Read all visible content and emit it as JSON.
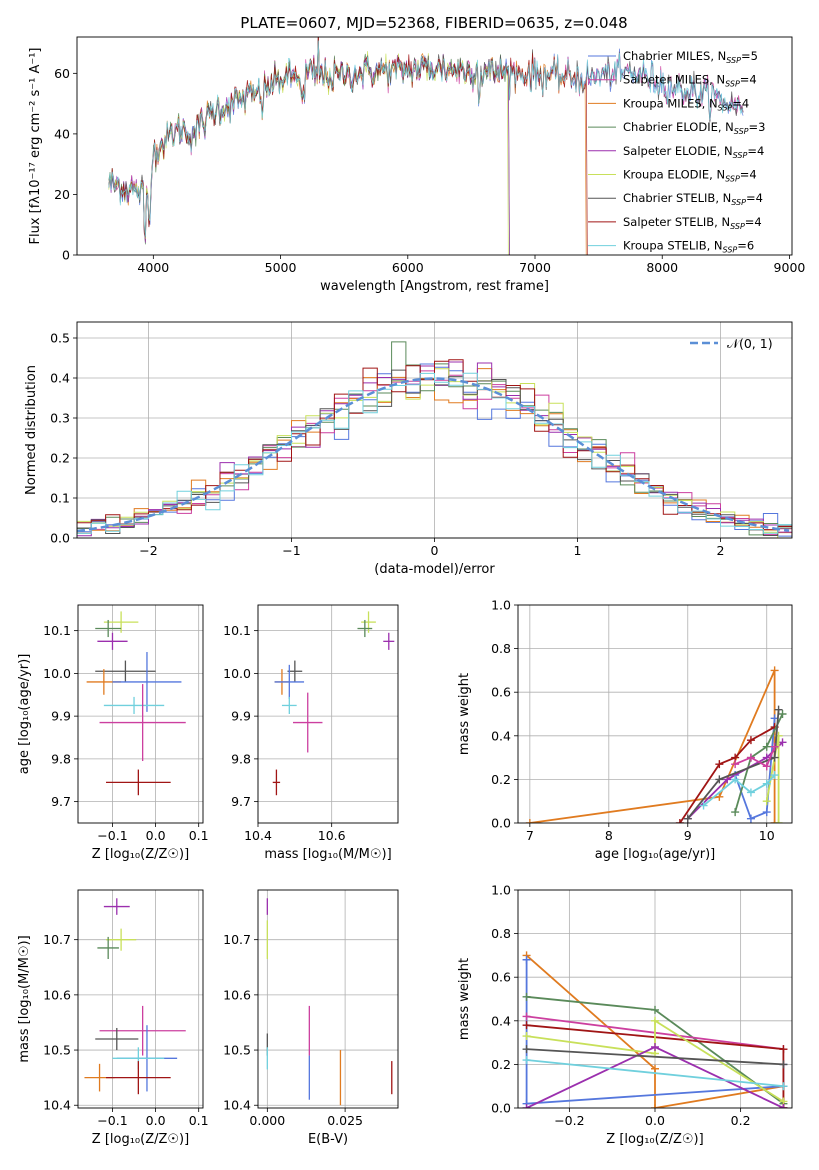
{
  "title": "PLATE=0607, MJD=52368, FIBERID=0635, z=0.048",
  "colors": {
    "Chabrier MILES": "#5577dd",
    "Salpeter MILES": "#cc3f9f",
    "Kroupa MILES": "#e07b20",
    "Chabrier ELODIE": "#5a8a5a",
    "Salpeter ELODIE": "#9b2fae",
    "Kroupa ELODIE": "#c8e05a",
    "Chabrier STELIB": "#555555",
    "Salpeter STELIB": "#a01515",
    "Kroupa STELIB": "#70d0dd"
  },
  "chart_data": [
    {
      "id": "spectrum",
      "type": "line",
      "xlabel": "wavelength [Angstrom, rest frame]",
      "ylabel": "Flux [fλ10⁻¹⁷ erg cm⁻² s⁻¹ A⁻¹]",
      "xlim": [
        3400,
        9020
      ],
      "ylim": [
        0,
        72
      ],
      "xticks": [
        4000,
        5000,
        6000,
        7000,
        8000,
        9000
      ],
      "yticks": [
        0,
        20,
        40,
        60
      ],
      "legend_position": "top-right",
      "legend": [
        {
          "model": "Chabrier MILES",
          "prefix": "Chabrier MILES, N",
          "nssp": "5"
        },
        {
          "model": "Salpeter MILES",
          "prefix": "Salpeter MILES, N",
          "nssp": "4"
        },
        {
          "model": "Kroupa MILES",
          "prefix": "Kroupa MILES, N",
          "nssp": "4"
        },
        {
          "model": "Chabrier ELODIE",
          "prefix": "Chabrier ELODIE, N",
          "nssp": "3"
        },
        {
          "model": "Salpeter ELODIE",
          "prefix": "Salpeter ELODIE, N",
          "nssp": "4"
        },
        {
          "model": "Kroupa ELODIE",
          "prefix": "Kroupa ELODIE, N",
          "nssp": "4"
        },
        {
          "model": "Chabrier STELIB",
          "prefix": "Chabrier STELIB, N",
          "nssp": "4"
        },
        {
          "model": "Salpeter STELIB",
          "prefix": "Salpeter STELIB, N",
          "nssp": "4"
        },
        {
          "model": "Kroupa STELIB",
          "prefix": "Kroupa STELIB, N",
          "nssp": "6"
        }
      ],
      "nssp_subscript": "SSP",
      "continuum": {
        "x": [
          3650,
          3800,
          3950,
          4000,
          4100,
          4200,
          4300,
          4500,
          4800,
          5000,
          5200,
          5400,
          5600,
          5800,
          6000,
          6200,
          6400,
          6600,
          6800,
          7000,
          7200,
          7400,
          7600,
          7800,
          8000,
          8200,
          8400,
          8600
        ],
        "y": [
          24,
          22,
          20,
          34,
          38,
          42,
          40,
          48,
          53,
          58,
          60,
          59,
          60,
          61,
          61,
          62,
          61,
          61,
          60,
          60,
          59,
          58,
          60,
          60,
          57,
          54,
          52,
          49
        ]
      },
      "model_cutoffs": [
        {
          "model": "Kroupa ELODIE",
          "x": 6790
        },
        {
          "model": "Chabrier ELODIE",
          "x": 6800
        },
        {
          "model": "Salpeter ELODIE",
          "x": 6800
        },
        {
          "model": "Kroupa MILES",
          "x": 7400
        },
        {
          "model": "Salpeter STELIB",
          "x": 7410
        }
      ]
    },
    {
      "id": "residuals",
      "type": "line",
      "xlabel": "(data-model)/error",
      "ylabel": "Normed distribution",
      "xlim": [
        -2.5,
        2.5
      ],
      "ylim": [
        0,
        0.54
      ],
      "xticks": [
        -2,
        -1,
        0,
        1,
        2
      ],
      "yticks": [
        0.0,
        0.1,
        0.2,
        0.3,
        0.4,
        0.5
      ],
      "grid": true,
      "legend_position": "top-right",
      "legend_label": "𝒩(0, 1)",
      "gaussian": {
        "mean": 0,
        "sigma": 1,
        "color": "#5b8fd6"
      }
    },
    {
      "id": "age-vs-Z",
      "type": "scatter",
      "xlabel": "Z [log₁₀(Z/Z☉)]",
      "ylabel": "age  [log₁₀(age/yr)]",
      "xlim": [
        -0.18,
        0.11
      ],
      "ylim": [
        9.65,
        10.16
      ],
      "xticks": [
        -0.1,
        0.0,
        0.1
      ],
      "yticks": [
        9.7,
        9.8,
        9.9,
        10.0,
        10.1
      ],
      "grid": true,
      "points": [
        {
          "model": "Kroupa ELODIE",
          "x": -0.08,
          "y": 10.12,
          "xerr": 0.04,
          "yerr": 0.025
        },
        {
          "model": "Chabrier ELODIE",
          "x": -0.11,
          "y": 10.105,
          "xerr": 0.03,
          "yerr": 0.02
        },
        {
          "model": "Salpeter ELODIE",
          "x": -0.1,
          "y": 10.075,
          "xerr": 0.035,
          "yerr": 0.02
        },
        {
          "model": "Chabrier STELIB",
          "x": -0.07,
          "y": 10.005,
          "xerr": 0.07,
          "yerr": 0.025
        },
        {
          "model": "Kroupa MILES",
          "x": -0.12,
          "y": 9.98,
          "xerr": 0.04,
          "yerr": 0.03
        },
        {
          "model": "Chabrier MILES",
          "x": -0.02,
          "y": 9.98,
          "xerr": 0.08,
          "yerr": 0.07
        },
        {
          "model": "Kroupa STELIB",
          "x": -0.05,
          "y": 9.925,
          "xerr": 0.07,
          "yerr": 0.02
        },
        {
          "model": "Salpeter MILES",
          "x": -0.03,
          "y": 9.885,
          "xerr": 0.1,
          "yerr": 0.09
        },
        {
          "model": "Salpeter STELIB",
          "x": -0.04,
          "y": 9.745,
          "xerr": 0.075,
          "yerr": 0.03
        }
      ]
    },
    {
      "id": "age-vs-mass",
      "type": "scatter",
      "xlabel": "mass [log₁₀(M/M☉)]",
      "ylabel": "",
      "xlim": [
        10.4,
        10.78
      ],
      "ylim": [
        9.65,
        10.16
      ],
      "xticks": [
        10.4,
        10.6
      ],
      "yticks": [
        9.7,
        9.8,
        9.9,
        10.0,
        10.1
      ],
      "grid": true,
      "points": [
        {
          "model": "Kroupa ELODIE",
          "x": 10.7,
          "y": 10.12,
          "xerr": 0.02,
          "yerr": 0.025
        },
        {
          "model": "Chabrier ELODIE",
          "x": 10.69,
          "y": 10.105,
          "xerr": 0.02,
          "yerr": 0.02
        },
        {
          "model": "Salpeter ELODIE",
          "x": 10.755,
          "y": 10.075,
          "xerr": 0.015,
          "yerr": 0.02
        },
        {
          "model": "Chabrier STELIB",
          "x": 10.5,
          "y": 10.005,
          "xerr": 0.02,
          "yerr": 0.025
        },
        {
          "model": "Kroupa MILES",
          "x": 10.465,
          "y": 9.98,
          "xerr": 0.02,
          "yerr": 0.03
        },
        {
          "model": "Chabrier MILES",
          "x": 10.485,
          "y": 9.98,
          "xerr": 0.04,
          "yerr": 0.04
        },
        {
          "model": "Kroupa STELIB",
          "x": 10.485,
          "y": 9.925,
          "xerr": 0.02,
          "yerr": 0.02
        },
        {
          "model": "Salpeter MILES",
          "x": 10.535,
          "y": 9.885,
          "xerr": 0.04,
          "yerr": 0.07
        },
        {
          "model": "Salpeter STELIB",
          "x": 10.45,
          "y": 9.745,
          "xerr": 0.01,
          "yerr": 0.03
        }
      ]
    },
    {
      "id": "weight-vs-age",
      "type": "line",
      "xlabel": "age  [log₁₀(age/yr)]",
      "ylabel": "mass weight",
      "xlim": [
        6.85,
        10.32
      ],
      "ylim": [
        0,
        1
      ],
      "xticks": [
        7,
        8,
        9,
        10
      ],
      "yticks": [
        0.0,
        0.2,
        0.4,
        0.6,
        0.8,
        1.0
      ],
      "grid": true,
      "series": [
        {
          "model": "Kroupa MILES",
          "x": [
            7.0,
            9.4,
            10.1,
            10.1
          ],
          "y": [
            0.0,
            0.12,
            0.7,
            0.0
          ]
        },
        {
          "model": "Chabrier MILES",
          "x": [
            9.6,
            9.8,
            10.0,
            10.1
          ],
          "y": [
            0.22,
            0.02,
            0.05,
            0.48
          ]
        },
        {
          "model": "Salpeter STELIB",
          "x": [
            8.9,
            9.4,
            9.6,
            9.8,
            10.1
          ],
          "y": [
            0.0,
            0.27,
            0.3,
            0.38,
            0.44
          ]
        },
        {
          "model": "Chabrier ELODIE",
          "x": [
            9.6,
            9.8,
            10.0,
            10.2
          ],
          "y": [
            0.05,
            0.3,
            0.35,
            0.5
          ]
        },
        {
          "model": "Salpeter ELODIE",
          "x": [
            9.0,
            9.5,
            10.0,
            10.2
          ],
          "y": [
            0.02,
            0.2,
            0.3,
            0.37
          ]
        },
        {
          "model": "Kroupa ELODIE",
          "x": [
            10.0,
            10.15,
            10.15
          ],
          "y": [
            0.1,
            0.4,
            0.0
          ]
        },
        {
          "model": "Chabrier STELIB",
          "x": [
            9.0,
            9.4,
            10.1,
            10.15
          ],
          "y": [
            0.02,
            0.2,
            0.3,
            0.52
          ]
        },
        {
          "model": "Kroupa STELIB",
          "x": [
            9.2,
            9.6,
            9.8,
            10.0,
            10.1
          ],
          "y": [
            0.08,
            0.2,
            0.14,
            0.18,
            0.22
          ]
        },
        {
          "model": "Salpeter MILES",
          "x": [
            9.6,
            9.8,
            10.0,
            10.1
          ],
          "y": [
            0.27,
            0.3,
            0.26,
            0.35
          ]
        }
      ]
    },
    {
      "id": "mass-vs-Z",
      "type": "scatter",
      "xlabel": "Z [log₁₀(Z/Z☉)]",
      "ylabel": "mass [log₁₀(M/M☉)]",
      "xlim": [
        -0.18,
        0.11
      ],
      "ylim": [
        10.395,
        10.79
      ],
      "xticks": [
        -0.1,
        0.0,
        0.1
      ],
      "yticks": [
        10.4,
        10.5,
        10.6,
        10.7
      ],
      "grid": true,
      "points": [
        {
          "model": "Salpeter ELODIE",
          "x": -0.09,
          "y": 10.76,
          "xerr": 0.03,
          "yerr": 0.015
        },
        {
          "model": "Kroupa ELODIE",
          "x": -0.08,
          "y": 10.7,
          "xerr": 0.035,
          "yerr": 0.02
        },
        {
          "model": "Chabrier ELODIE",
          "x": -0.11,
          "y": 10.685,
          "xerr": 0.025,
          "yerr": 0.02
        },
        {
          "model": "Salpeter MILES",
          "x": -0.03,
          "y": 10.535,
          "xerr": 0.1,
          "yerr": 0.045
        },
        {
          "model": "Chabrier STELIB",
          "x": -0.09,
          "y": 10.52,
          "xerr": 0.05,
          "yerr": 0.02
        },
        {
          "model": "Chabrier MILES",
          "x": -0.02,
          "y": 10.485,
          "xerr": 0.07,
          "yerr": 0.06
        },
        {
          "model": "Kroupa STELIB",
          "x": -0.04,
          "y": 10.485,
          "xerr": 0.06,
          "yerr": 0.02
        },
        {
          "model": "Kroupa MILES",
          "x": -0.13,
          "y": 10.45,
          "xerr": 0.035,
          "yerr": 0.025
        },
        {
          "model": "Salpeter STELIB",
          "x": -0.04,
          "y": 10.45,
          "xerr": 0.075,
          "yerr": 0.03
        }
      ]
    },
    {
      "id": "mass-vs-EBV",
      "type": "scatter",
      "xlabel": "E(B-V)",
      "ylabel": "",
      "xlim": [
        -0.003,
        0.042
      ],
      "ylim": [
        10.395,
        10.79
      ],
      "xticks": [
        0.0,
        0.025
      ],
      "yticks": [
        10.4,
        10.5,
        10.6,
        10.7
      ],
      "grid": true,
      "points": [
        {
          "model": "Salpeter ELODIE",
          "x": 0.0,
          "y": 10.76,
          "xerr": 0,
          "yerr": 0.015
        },
        {
          "model": "Kroupa ELODIE",
          "x": 0.0,
          "y": 10.7,
          "xerr": 0,
          "yerr": 0.035
        },
        {
          "model": "Chabrier STELIB",
          "x": 0.0,
          "y": 10.51,
          "xerr": 0,
          "yerr": 0.02
        },
        {
          "model": "Kroupa STELIB",
          "x": 0.0,
          "y": 10.485,
          "xerr": 0,
          "yerr": 0.02
        },
        {
          "model": "Salpeter MILES",
          "x": 0.0135,
          "y": 10.535,
          "xerr": 0,
          "yerr": 0.045
        },
        {
          "model": "Chabrier MILES",
          "x": 0.0135,
          "y": 10.45,
          "xerr": 0,
          "yerr": 0.04
        },
        {
          "model": "Kroupa MILES",
          "x": 0.0235,
          "y": 10.45,
          "xerr": 0,
          "yerr": 0.05
        },
        {
          "model": "Salpeter STELIB",
          "x": 0.04,
          "y": 10.45,
          "xerr": 0,
          "yerr": 0.03
        }
      ]
    },
    {
      "id": "weight-vs-Z",
      "type": "line",
      "xlabel": "Z [log₁₀(Z/Z☉)]",
      "ylabel": "mass weight",
      "xlim": [
        -0.32,
        0.32
      ],
      "ylim": [
        0,
        1
      ],
      "xticks": [
        -0.2,
        0.0,
        0.2
      ],
      "yticks": [
        0.0,
        0.2,
        0.4,
        0.6,
        0.8,
        1.0
      ],
      "grid": true,
      "series": [
        {
          "model": "Kroupa MILES",
          "x": [
            -0.3,
            0.0,
            0.0,
            0.3,
            0.3
          ],
          "y": [
            0.7,
            0.18,
            0.0,
            0.1,
            0.0
          ]
        },
        {
          "model": "Chabrier MILES",
          "x": [
            -0.3,
            -0.3,
            0.3,
            0.3
          ],
          "y": [
            0.68,
            0.02,
            0.1,
            0.2
          ]
        },
        {
          "model": "Chabrier ELODIE",
          "x": [
            -0.3,
            0.0,
            0.3
          ],
          "y": [
            0.51,
            0.45,
            0.02
          ]
        },
        {
          "model": "Salpeter MILES",
          "x": [
            -0.3,
            0.3
          ],
          "y": [
            0.42,
            0.27
          ]
        },
        {
          "model": "Salpeter STELIB",
          "x": [
            -0.3,
            0.3,
            0.3
          ],
          "y": [
            0.38,
            0.27,
            0.0
          ]
        },
        {
          "model": "Kroupa ELODIE",
          "x": [
            -0.3,
            0.0,
            0.0,
            0.3
          ],
          "y": [
            0.33,
            0.25,
            0.4,
            0.03
          ]
        },
        {
          "model": "Salpeter ELODIE",
          "x": [
            -0.3,
            0.0,
            0.3
          ],
          "y": [
            0.0,
            0.28,
            0.0
          ]
        },
        {
          "model": "Chabrier STELIB",
          "x": [
            -0.3,
            0.3
          ],
          "y": [
            0.27,
            0.2
          ]
        },
        {
          "model": "Kroupa STELIB",
          "x": [
            -0.3,
            0.3
          ],
          "y": [
            0.22,
            0.1
          ]
        }
      ]
    }
  ]
}
